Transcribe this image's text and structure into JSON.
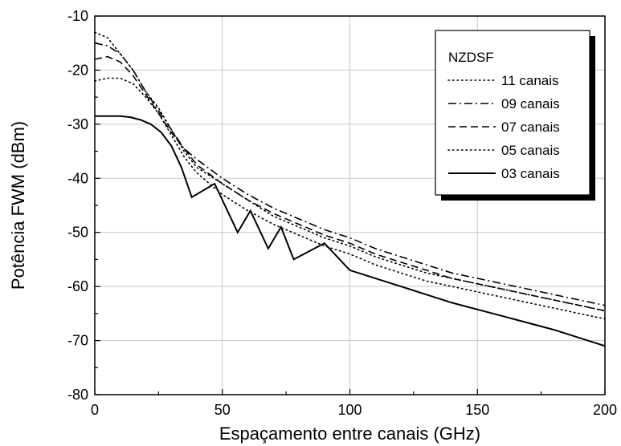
{
  "chart_data": {
    "type": "line",
    "title": "",
    "xlabel": "Espaçamento entre canais (GHz)",
    "ylabel": "Potência FWM (dBm)",
    "xlim": [
      0,
      200
    ],
    "ylim": [
      -80,
      -10
    ],
    "x_ticks": [
      0,
      50,
      100,
      150,
      200
    ],
    "y_ticks": [
      -10,
      -20,
      -30,
      -40,
      -50,
      -60,
      -70,
      -80
    ],
    "grid": true,
    "legend_position": "top-right",
    "legend_title": "NZDSF",
    "series": [
      {
        "name": "11 canais",
        "style": "dotted",
        "x": [
          0,
          5,
          10,
          15,
          20,
          25,
          30,
          35,
          40,
          50,
          60,
          70,
          80,
          90,
          100,
          110,
          120,
          130,
          140,
          150,
          160,
          170,
          180,
          190,
          200
        ],
        "y": [
          -13,
          -14,
          -17,
          -20,
          -24,
          -27,
          -31,
          -35,
          -38,
          -41,
          -44,
          -47,
          -49,
          -51,
          -52.5,
          -54.5,
          -56,
          -57.5,
          -58.5,
          -59.5,
          -60.5,
          -61.5,
          -62.5,
          -63.5,
          -64.5
        ]
      },
      {
        "name": "09 canais",
        "style": "dashdot",
        "x": [
          0,
          5,
          10,
          15,
          20,
          25,
          30,
          35,
          40,
          50,
          60,
          70,
          80,
          90,
          100,
          110,
          120,
          130,
          140,
          150,
          160,
          170,
          180,
          190,
          200
        ],
        "y": [
          -15,
          -15.5,
          -17,
          -20,
          -24,
          -27.5,
          -31,
          -34.5,
          -36.5,
          -40,
          -43,
          -45.5,
          -47.5,
          -49.5,
          -51,
          -53,
          -54.5,
          -56,
          -57.5,
          -58.5,
          -59.5,
          -60.5,
          -61.5,
          -62.5,
          -63.5
        ]
      },
      {
        "name": "07 canais",
        "style": "dashed",
        "x": [
          0,
          5,
          10,
          15,
          20,
          25,
          30,
          35,
          40,
          50,
          60,
          70,
          80,
          90,
          100,
          110,
          120,
          130,
          140,
          150,
          160,
          170,
          180,
          190,
          200
        ],
        "y": [
          -18,
          -17.5,
          -18.5,
          -21,
          -24.5,
          -28,
          -31.5,
          -34.5,
          -37.5,
          -41,
          -44,
          -46.5,
          -48.5,
          -50.5,
          -52,
          -54,
          -55.5,
          -57,
          -58.5,
          -59.5,
          -60.5,
          -61.5,
          -62.5,
          -63.5,
          -64.5
        ]
      },
      {
        "name": "05 canais",
        "style": "dotted",
        "x": [
          0,
          5,
          10,
          15,
          20,
          25,
          30,
          35,
          40,
          50,
          60,
          70,
          80,
          90,
          100,
          110,
          120,
          130,
          140,
          150,
          160,
          170,
          180,
          190,
          200
        ],
        "y": [
          -22,
          -21.5,
          -21.5,
          -22.5,
          -25,
          -28,
          -32,
          -36,
          -39,
          -43,
          -46,
          -48.5,
          -50.5,
          -52.5,
          -54,
          -56,
          -57.5,
          -59,
          -60,
          -61,
          -62,
          -63,
          -64,
          -65,
          -66
        ]
      },
      {
        "name": "03 canais",
        "style": "solid",
        "x": [
          0,
          5,
          10,
          14,
          18,
          22,
          26,
          30,
          34,
          38,
          47,
          56,
          61,
          68,
          73,
          78,
          90,
          100,
          120,
          140,
          160,
          180,
          200
        ],
        "y": [
          -28.5,
          -28.5,
          -28.5,
          -28.7,
          -29.2,
          -30,
          -31.5,
          -34,
          -38,
          -43.5,
          -41,
          -50,
          -46,
          -53,
          -49,
          -55,
          -52,
          -57,
          -60,
          -63,
          -65.5,
          -68,
          -71
        ]
      }
    ]
  }
}
